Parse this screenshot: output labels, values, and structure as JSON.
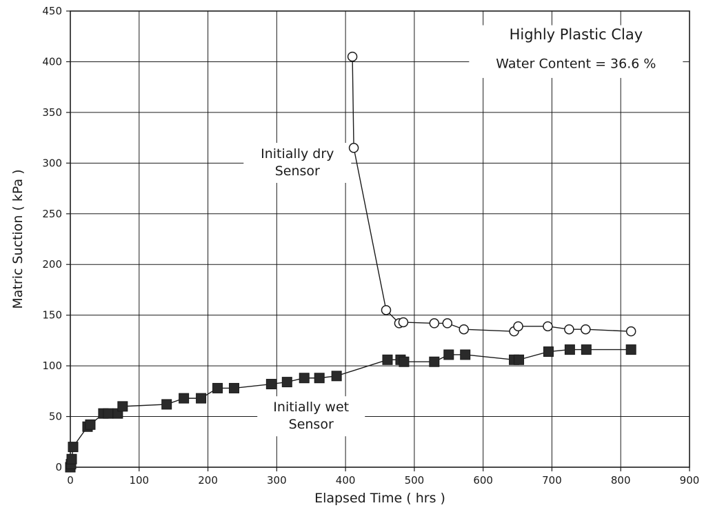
{
  "chart_data": {
    "type": "scatter",
    "title": "Highly Plastic Clay",
    "subtitle": "Water Content = 36.6 %",
    "xlabel": "Elapsed Time ( hrs )",
    "ylabel": "Matric Suction ( kPa )",
    "xlim": [
      0,
      900
    ],
    "ylim": [
      0,
      450
    ],
    "xticks": [
      0,
      100,
      200,
      300,
      400,
      500,
      600,
      700,
      800,
      900
    ],
    "yticks": [
      0,
      50,
      100,
      150,
      200,
      250,
      300,
      350,
      400,
      450
    ],
    "grid": true,
    "annotations": [
      {
        "lines": [
          "Initially dry",
          "Sensor"
        ],
        "x": 330,
        "y": 305
      },
      {
        "lines": [
          "Initially wet",
          "Sensor"
        ],
        "x": 350,
        "y": 55
      }
    ],
    "series": [
      {
        "marker": "open-circle",
        "x": [
          410,
          412,
          459,
          478,
          484,
          529,
          548,
          572,
          645,
          651,
          694,
          725,
          749,
          815
        ],
        "y": [
          405,
          315,
          155,
          142,
          143,
          142,
          142,
          136,
          134,
          139,
          139,
          136,
          136,
          134
        ]
      },
      {
        "marker": "filled-square",
        "x": [
          0,
          1,
          2,
          4,
          25,
          29,
          48,
          55,
          69,
          76,
          140,
          165,
          190,
          214,
          238,
          292,
          315,
          340,
          362,
          387,
          461,
          480,
          485,
          529,
          550,
          574,
          645,
          652,
          695,
          726,
          750,
          815
        ],
        "y": [
          0,
          3,
          8,
          20,
          40,
          42,
          53,
          53,
          53,
          60,
          62,
          68,
          68,
          78,
          78,
          82,
          84,
          88,
          88,
          90,
          106,
          106,
          104,
          104,
          111,
          111,
          106,
          106,
          114,
          116,
          116,
          116
        ]
      }
    ]
  }
}
